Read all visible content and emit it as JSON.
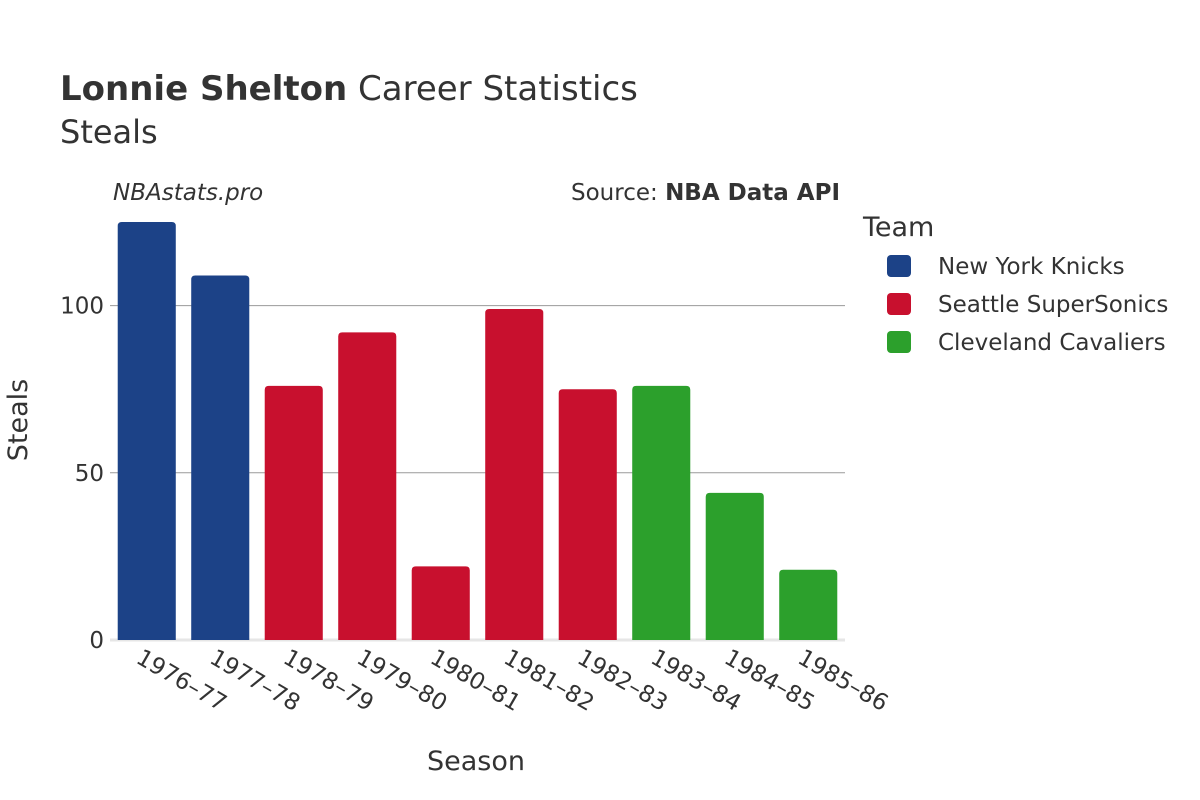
{
  "header": {
    "title_bold": "Lonnie Shelton",
    "title_rest": "Career Statistics",
    "subtitle": "Steals",
    "brand": "NBAstats.pro",
    "source_prefix": "Source: ",
    "source_name": "NBA Data API"
  },
  "legend": {
    "title": "Team"
  },
  "chart_data": {
    "type": "bar",
    "xlabel": "Season",
    "ylabel": "Steals",
    "ylim": [
      0,
      125
    ],
    "yticks": [
      0,
      50,
      100
    ],
    "grid": true,
    "legend_position": "right",
    "categories": [
      "1976–77",
      "1977–78",
      "1978–79",
      "1979–80",
      "1980–81",
      "1981–82",
      "1982–83",
      "1983–84",
      "1984–85",
      "1985–86"
    ],
    "series": [
      {
        "name": "New York Knicks",
        "color": "#1c4287",
        "values": [
          125,
          109,
          null,
          null,
          null,
          null,
          null,
          null,
          null,
          null
        ]
      },
      {
        "name": "Seattle SuperSonics",
        "color": "#c8102e",
        "values": [
          null,
          null,
          76,
          92,
          22,
          99,
          75,
          null,
          null,
          null
        ]
      },
      {
        "name": "Cleveland Cavaliers",
        "color": "#2ca02c",
        "values": [
          null,
          null,
          null,
          null,
          null,
          null,
          null,
          76,
          44,
          21
        ]
      }
    ]
  }
}
